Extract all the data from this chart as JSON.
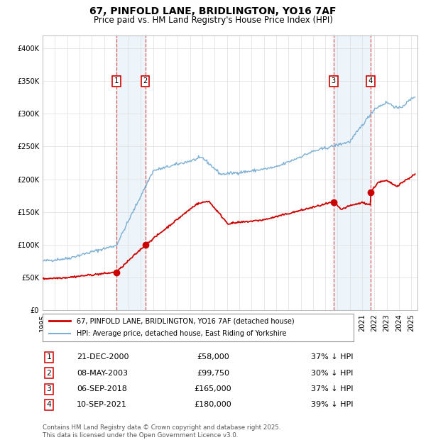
{
  "title": "67, PINFOLD LANE, BRIDLINGTON, YO16 7AF",
  "subtitle": "Price paid vs. HM Land Registry's House Price Index (HPI)",
  "property_label": "67, PINFOLD LANE, BRIDLINGTON, YO16 7AF (detached house)",
  "hpi_label": "HPI: Average price, detached house, East Riding of Yorkshire",
  "property_color": "#cc0000",
  "hpi_color": "#7bafd4",
  "transactions": [
    {
      "num": 1,
      "date": "21-DEC-2000",
      "price": "£58,000",
      "pct": "37% ↓ HPI",
      "year": 2001.0
    },
    {
      "num": 2,
      "date": "08-MAY-2003",
      "price": "£99,750",
      "pct": "30% ↓ HPI",
      "year": 2003.36
    },
    {
      "num": 3,
      "date": "06-SEP-2018",
      "price": "£165,000",
      "pct": "37% ↓ HPI",
      "year": 2018.68
    },
    {
      "num": 4,
      "date": "10-SEP-2021",
      "price": "£180,000",
      "pct": "39% ↓ HPI",
      "year": 2021.68
    }
  ],
  "trans_prices": [
    58000,
    99750,
    165000,
    180000
  ],
  "footer": "Contains HM Land Registry data © Crown copyright and database right 2025.\nThis data is licensed under the Open Government Licence v3.0.",
  "ylim": [
    0,
    420000
  ],
  "yticks": [
    0,
    50000,
    100000,
    150000,
    200000,
    250000,
    300000,
    350000,
    400000
  ],
  "xlim_start": 1995,
  "xlim_end": 2025.5
}
